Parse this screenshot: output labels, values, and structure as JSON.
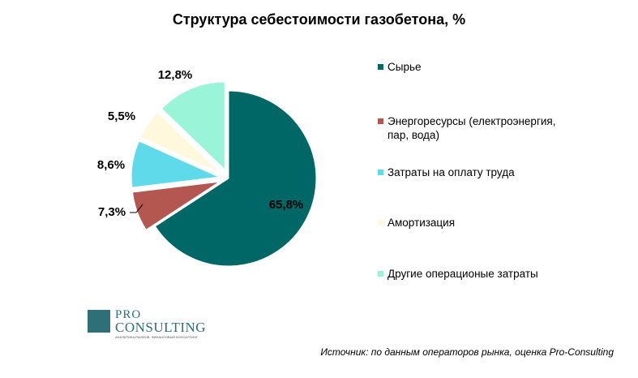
{
  "chart_data": {
    "type": "pie",
    "title": "Структура себестоимости газобетона, %",
    "slices": [
      {
        "name": "Сырье",
        "value": 65.8,
        "label": "65,8%",
        "color": "#006767"
      },
      {
        "name": "Энергоресурсы (електроэнергия, пар, вода)",
        "value": 7.3,
        "label": "7,3%",
        "color": "#b45750"
      },
      {
        "name": "Затраты на оплату труда",
        "value": 8.6,
        "label": "8,6%",
        "color": "#5fdaeb"
      },
      {
        "name": "Амортизация",
        "value": 5.5,
        "label": "5,5%",
        "color": "#fff8dc"
      },
      {
        "name": "Другие операционые затраты",
        "value": 12.8,
        "label": "12,8%",
        "color": "#9af5d8"
      }
    ],
    "legend_position": "right"
  },
  "logo": {
    "pro": "PRO",
    "consulting": "CONSULTING",
    "tagline": "АНАЛИТИКА РЫНКОВ. ФИНАНСОВЫЙ КОНСАЛТИНГ"
  },
  "source": "Источник: по данным операторов рынка, оценка Pro-Consulting"
}
